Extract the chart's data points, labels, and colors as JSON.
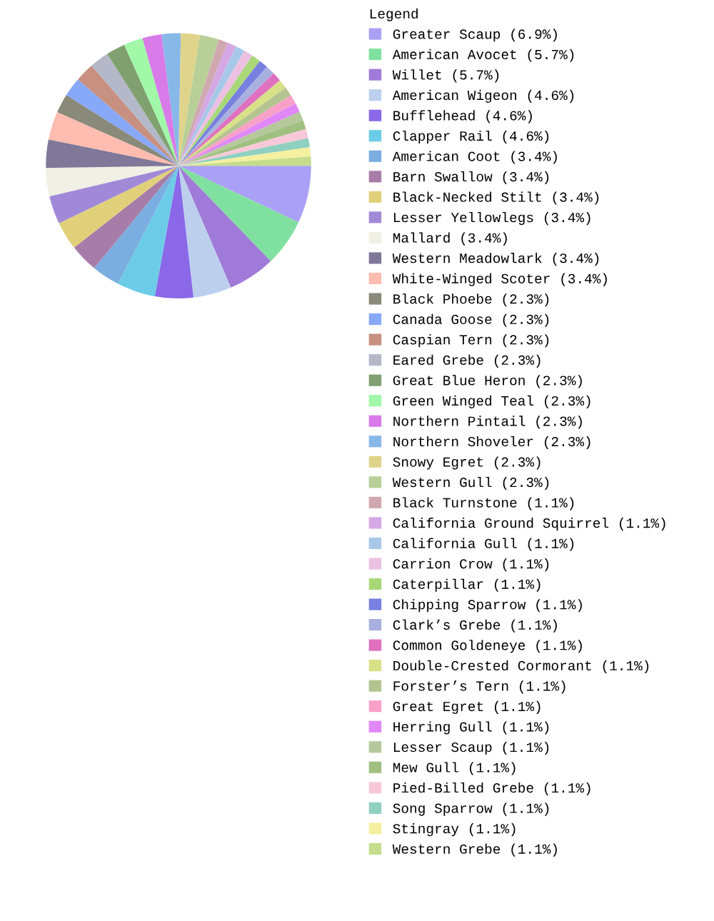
{
  "chart_data": {
    "type": "pie",
    "legend_title": "Legend",
    "legend": "right",
    "categories": [
      "Greater Scaup (6.9%)",
      "American Avocet (5.7%)",
      "Willet (5.7%)",
      "American Wigeon (4.6%)",
      "Bufflehead (4.6%)",
      "Clapper Rail (4.6%)",
      "American Coot (3.4%)",
      "Barn Swallow (3.4%)",
      "Black-Necked Stilt (3.4%)",
      "Lesser Yellowlegs (3.4%)",
      "Mallard (3.4%)",
      "Western Meadowlark (3.4%)",
      "White-Winged Scoter (3.4%)",
      "Black Phoebe (2.3%)",
      "Canada Goose (2.3%)",
      "Caspian Tern (2.3%)",
      "Eared Grebe (2.3%)",
      "Great Blue Heron (2.3%)",
      "Green Winged Teal (2.3%)",
      "Northern Pintail (2.3%)",
      "Northern Shoveler (2.3%)",
      "Snowy Egret (2.3%)",
      "Western Gull (2.3%)",
      "Black Turnstone (1.1%)",
      "California Ground Squirrel (1.1%)",
      "California Gull (1.1%)",
      "Carrion Crow (1.1%)",
      "Caterpillar (1.1%)",
      "Chipping Sparrow (1.1%)",
      "Clark’s Grebe (1.1%)",
      "Common Goldeneye (1.1%)",
      "Double-Crested Cormorant (1.1%)",
      "Forster’s Tern (1.1%)",
      "Great Egret (1.1%)",
      "Herring Gull (1.1%)",
      "Lesser Scaup (1.1%)",
      "Mew Gull (1.1%)",
      "Pied-Billed Grebe (1.1%)",
      "Song Sparrow (1.1%)",
      "Stingray (1.1%)",
      "Western Grebe (1.1%)"
    ],
    "values": [
      6.9,
      5.7,
      5.7,
      4.6,
      4.6,
      4.6,
      3.4,
      3.4,
      3.4,
      3.4,
      3.4,
      3.4,
      3.4,
      2.3,
      2.3,
      2.3,
      2.3,
      2.3,
      2.3,
      2.3,
      2.3,
      2.3,
      2.3,
      1.1,
      1.1,
      1.1,
      1.1,
      1.1,
      1.1,
      1.1,
      1.1,
      1.1,
      1.1,
      1.1,
      1.1,
      1.1,
      1.1,
      1.1,
      1.1,
      1.1,
      1.1
    ],
    "colors": [
      "#aaa0f5",
      "#80e0a0",
      "#a07ad8",
      "#bcd0ee",
      "#8a68e8",
      "#6ccce8",
      "#7aaee0",
      "#a87ca8",
      "#e0d07a",
      "#a08ad8",
      "#f0f0e4",
      "#807898",
      "#ffbcb0",
      "#8a8a7a",
      "#88a8f8",
      "#c89080",
      "#b4b8c8",
      "#80a070",
      "#a0f8a8",
      "#d87ae8",
      "#88b8e8",
      "#e0d48c",
      "#b8d098",
      "#d0a8b0",
      "#d4a8e4",
      "#a8c8e8",
      "#ecc0e0",
      "#a8d878",
      "#7880e0",
      "#a8b0e0",
      "#e070c0",
      "#d8e088",
      "#b4c490",
      "#f8a0c8",
      "#e088f8",
      "#b4c89c",
      "#a0c080",
      "#f8c8d8",
      "#90d0c0",
      "#f4f0a0",
      "#c4dc8c"
    ]
  }
}
